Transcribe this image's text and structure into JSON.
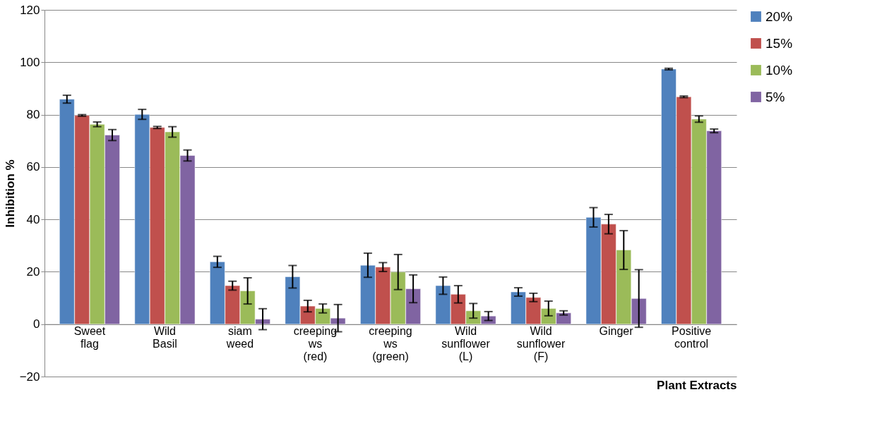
{
  "chart_data": {
    "type": "bar",
    "xlabel": "Plant Extracts",
    "ylabel": "Inhibition %",
    "categories": [
      "Sweet flag",
      "Wild Basil",
      "siam weed",
      "creeping ws (red)",
      "creeping ws (green)",
      "Wild sunflower (L)",
      "Wild sunflower (F)",
      "Ginger",
      "Positive control"
    ],
    "series": [
      {
        "name": "20%",
        "color": "#4f81bd",
        "values": [
          85.9,
          80.1,
          23.8,
          18.1,
          22.5,
          14.7,
          12.3,
          40.8,
          97.4
        ],
        "errors": [
          1.5,
          1.9,
          2.1,
          4.3,
          4.6,
          3.3,
          1.6,
          3.7,
          0.3
        ]
      },
      {
        "name": "15%",
        "color": "#c0504d",
        "values": [
          79.7,
          75.1,
          14.7,
          6.9,
          21.8,
          11.4,
          10.2,
          38.2,
          86.8
        ],
        "errors": [
          0.3,
          0.4,
          1.7,
          2.2,
          1.7,
          3.3,
          1.6,
          3.7,
          0.3
        ]
      },
      {
        "name": "10%",
        "color": "#9bbb59",
        "values": [
          76.3,
          73.4,
          12.7,
          6.0,
          19.9,
          5.1,
          6.0,
          28.3,
          78.3
        ],
        "errors": [
          0.9,
          2.0,
          5.0,
          1.7,
          6.7,
          2.8,
          2.8,
          7.4,
          1.2
        ]
      },
      {
        "name": "5%",
        "color": "#8064a2",
        "values": [
          72.2,
          64.4,
          1.9,
          2.3,
          13.5,
          3.1,
          4.3,
          9.8,
          73.8
        ],
        "errors": [
          2.1,
          2.1,
          4.0,
          5.2,
          5.3,
          1.7,
          0.8,
          11.0,
          0.7
        ]
      }
    ],
    "ylim": [
      -20,
      120
    ],
    "yticks": [
      -20,
      0,
      20,
      40,
      60,
      80,
      100,
      120
    ],
    "grid": "y",
    "legend": "right"
  }
}
